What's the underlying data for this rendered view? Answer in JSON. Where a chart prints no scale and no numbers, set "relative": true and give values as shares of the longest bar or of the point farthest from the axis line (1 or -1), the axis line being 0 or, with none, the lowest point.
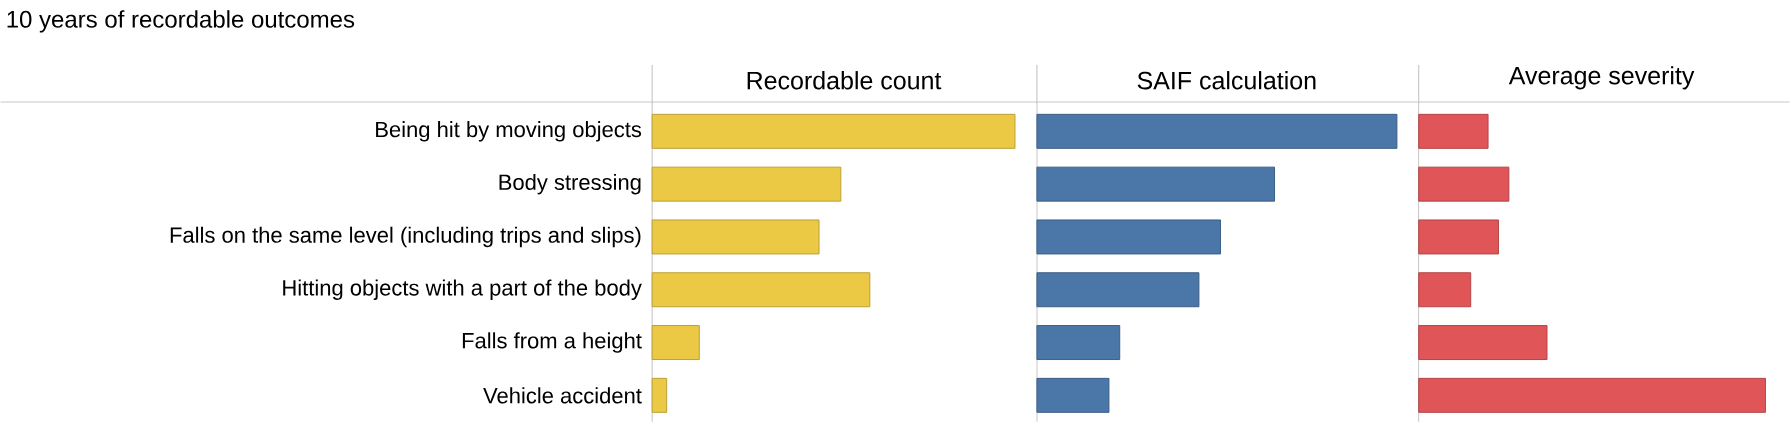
{
  "chart_data": [
    {
      "type": "bar",
      "orientation": "horizontal",
      "relative": true,
      "title": "Recordable count",
      "annotations": [
        "10 years of recordable outcomes"
      ],
      "categories": [
        "Being hit by moving objects",
        "Body stressing",
        "Falls on the same level (including trips and slips)",
        "Hitting objects with a part of the body",
        "Falls from a height",
        "Vehicle accident"
      ],
      "color": "#ebc944",
      "values": [
        1,
        0.52,
        0.46,
        0.6,
        0.13,
        0.04
      ]
    },
    {
      "type": "bar",
      "orientation": "horizontal",
      "relative": true,
      "title": "SAIF calculation",
      "color": "#4a76a8",
      "values": [
        1,
        0.66,
        0.51,
        0.45,
        0.23,
        0.2
      ]
    },
    {
      "type": "bar",
      "orientation": "horizontal",
      "relative": true,
      "title": "Average severity",
      "color": "#e05658",
      "values": [
        0.2,
        0.26,
        0.23,
        0.15,
        0.37,
        1
      ]
    }
  ]
}
